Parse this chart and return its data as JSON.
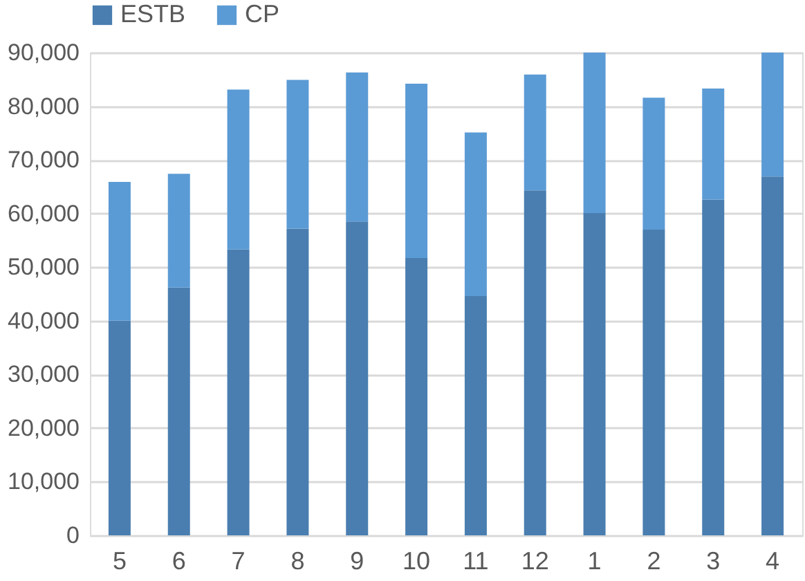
{
  "chart_data": {
    "type": "bar",
    "stacked": true,
    "categories": [
      "5",
      "6",
      "7",
      "8",
      "9",
      "10",
      "11",
      "12",
      "1",
      "2",
      "3",
      "4"
    ],
    "series": [
      {
        "name": "ESTB",
        "color": "#4a7eb0",
        "values": [
          40000,
          46200,
          53300,
          57200,
          58500,
          51700,
          44600,
          64300,
          60100,
          57000,
          62600,
          66900
        ]
      },
      {
        "name": "CP",
        "color": "#5b9bd5",
        "values": [
          25900,
          21200,
          29800,
          27700,
          27800,
          32500,
          30500,
          21600,
          29900,
          24600,
          20700,
          23100
        ]
      }
    ],
    "ylim": [
      0,
      90000
    ],
    "yticks": [
      0,
      {
        "value": 10000,
        "label": "10,000"
      },
      {
        "value": 20000,
        "label": "20,000"
      },
      {
        "value": 30000,
        "label": "30,000"
      },
      {
        "value": 40000,
        "label": "40,000"
      },
      {
        "value": 50000,
        "label": "50,000"
      },
      {
        "value": 60000,
        "label": "60,000"
      },
      {
        "value": 70000,
        "label": "70,000"
      },
      {
        "value": 80000,
        "label": "80,000"
      },
      {
        "value": 90000,
        "label": "90,000"
      }
    ],
    "grid": "y",
    "legend": "top"
  }
}
